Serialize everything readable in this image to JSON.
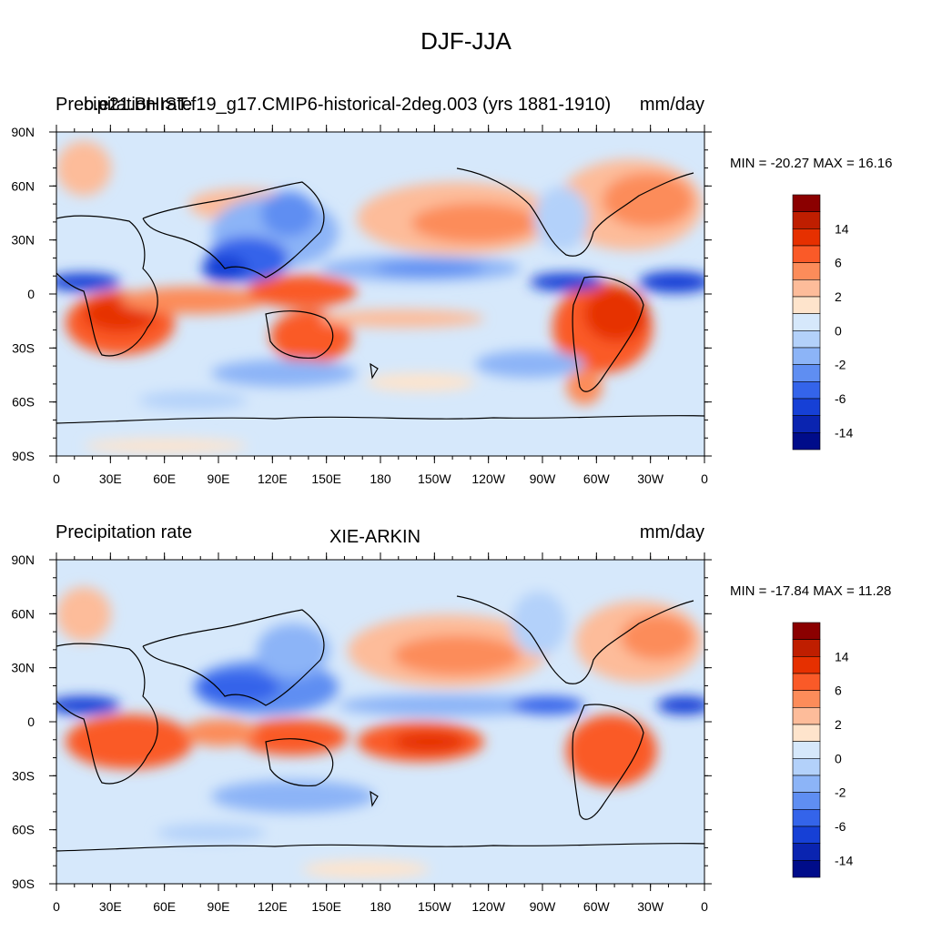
{
  "figure": {
    "title": "DJF-JJA"
  },
  "panels": [
    {
      "left_title": "Precipitation rate",
      "center_title": "b.e21.BHIST.f19_g17.CMIP6-historical-2deg.003 (yrs 1881-1910)",
      "right_title": "mm/day",
      "min_max": "MIN = -20.27 MAX =  16.16"
    },
    {
      "left_title": "Precipitation rate",
      "center_title": "XIE-ARKIN",
      "right_title": "mm/day",
      "min_max": "MIN = -17.84 MAX =  11.28"
    }
  ],
  "lat_ticks": [
    "90N",
    "60N",
    "30N",
    "0",
    "30S",
    "60S",
    "90S"
  ],
  "lon_ticks": [
    "0",
    "30E",
    "60E",
    "90E",
    "120E",
    "150E",
    "180",
    "150W",
    "120W",
    "90W",
    "60W",
    "30W",
    "0"
  ],
  "colorbar": {
    "labels": [
      "14",
      "6",
      "2",
      "0",
      "-2",
      "-6",
      "-14"
    ],
    "colors": [
      "#8b0000",
      "#bf1e00",
      "#e63000",
      "#fa5a28",
      "#fc8c5a",
      "#fdbc9a",
      "#fee4cc",
      "#d6e8fb",
      "#b3d1fa",
      "#8cb4f7",
      "#5f8ef2",
      "#3464ea",
      "#1640d6",
      "#0a24b0",
      "#000c8a"
    ]
  },
  "colors": {
    "ocean_base": "#d6e8fb",
    "coast": "#000000"
  }
}
